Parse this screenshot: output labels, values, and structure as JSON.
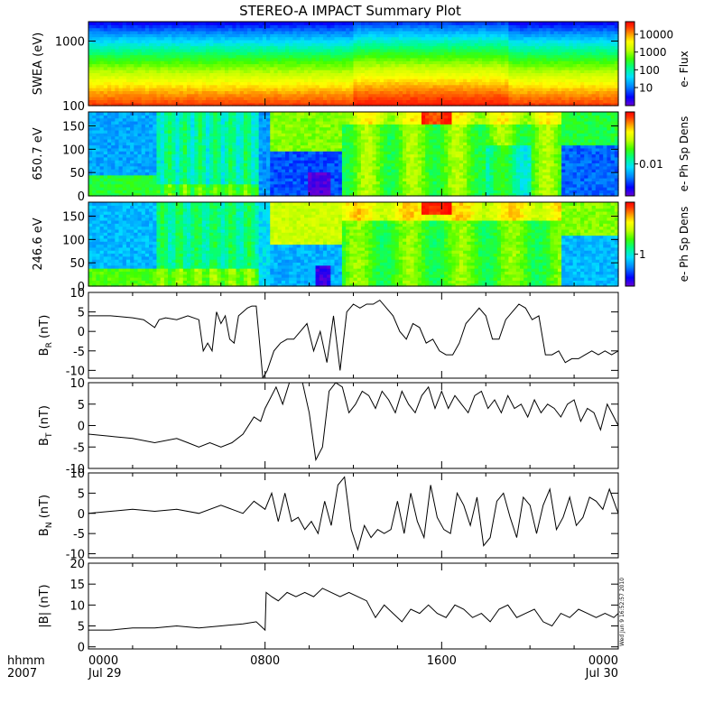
{
  "title": "STEREO-A IMPACT Summary Plot",
  "timestamp": "Wed Jun 9 16:52:57 2010",
  "x_axis": {
    "row1_label": "hhmm",
    "row2_label": "2007",
    "ticks": [
      {
        "hours": 0,
        "time": "0000",
        "date": "Jul 29"
      },
      {
        "hours": 8,
        "time": "0800",
        "date": ""
      },
      {
        "hours": 16,
        "time": "1600",
        "date": ""
      },
      {
        "hours": 24,
        "time": "0000",
        "date": "Jul 30"
      }
    ],
    "range_hours": [
      0,
      24
    ]
  },
  "colors": {
    "trace": "#000000",
    "colormap": [
      "#6a00d4",
      "#0000ff",
      "#0080ff",
      "#00e0ff",
      "#00ff80",
      "#40ff00",
      "#c0ff00",
      "#ffff00",
      "#ff9000",
      "#ff3000",
      "#ff0000"
    ]
  },
  "chart_data": [
    {
      "type": "heatmap",
      "ylabel": "SWEA (eV)",
      "yscale": "log",
      "ylim": [
        100,
        2000
      ],
      "yticks": [
        "100",
        "1000"
      ],
      "colorbar": {
        "label": "e- Flux",
        "scale": "log",
        "ticks": [
          "10",
          "100",
          "1000",
          "10000"
        ]
      }
    },
    {
      "type": "heatmap",
      "ylabel": "650.7 eV",
      "ylim": [
        0,
        180
      ],
      "yticks": [
        "0",
        "50",
        "100",
        "150"
      ],
      "colorbar": {
        "label": "e- Ph Sp Dens",
        "scale": "log",
        "ticks": [
          "0.01"
        ]
      }
    },
    {
      "type": "heatmap",
      "ylabel": "246.6 eV",
      "ylim": [
        0,
        180
      ],
      "yticks": [
        "0",
        "50",
        "100",
        "150"
      ],
      "colorbar": {
        "label": "e- Ph Sp Dens",
        "scale": "log",
        "ticks": [
          "1"
        ]
      }
    },
    {
      "type": "line",
      "ylabel": "B",
      "ylabel_sub": "R",
      "ylabel_unit": " (nT)",
      "ylim": [
        -12,
        10
      ],
      "yticks": [
        "-10",
        "-5",
        "0",
        "5",
        "10"
      ],
      "x": [
        0,
        1,
        2,
        2.5,
        3,
        3.2,
        3.5,
        4,
        4.5,
        5,
        5.2,
        5.4,
        5.6,
        5.8,
        6,
        6.2,
        6.4,
        6.6,
        6.8,
        7,
        7.2,
        7.4,
        7.6,
        7.9,
        8.1,
        8.4,
        8.7,
        9,
        9.3,
        9.6,
        9.9,
        10.2,
        10.5,
        10.8,
        11.1,
        11.4,
        11.7,
        12,
        12.3,
        12.6,
        12.9,
        13.2,
        13.5,
        13.8,
        14.1,
        14.4,
        14.7,
        15,
        15.3,
        15.6,
        15.9,
        16.2,
        16.5,
        16.8,
        17.1,
        17.4,
        17.7,
        18,
        18.3,
        18.6,
        18.9,
        19.2,
        19.5,
        19.8,
        20.1,
        20.4,
        20.7,
        21,
        21.3,
        21.6,
        21.9,
        22.2,
        22.5,
        22.8,
        23.1,
        23.4,
        23.7,
        24
      ],
      "y": [
        4,
        4,
        3.5,
        3,
        1,
        3,
        3.5,
        3,
        4,
        3,
        -5,
        -3,
        -5,
        5,
        2,
        4,
        -2,
        -3,
        4,
        5,
        6,
        6.5,
        6.5,
        -12,
        -10,
        -5,
        -3,
        -2,
        -2,
        0,
        2,
        -5,
        0,
        -8,
        4,
        -10,
        5,
        7,
        6,
        7,
        7,
        8,
        6,
        4,
        0,
        -2,
        2,
        1,
        -3,
        -2,
        -5,
        -6,
        -6,
        -3,
        2,
        4,
        6,
        4,
        -2,
        -2,
        3,
        5,
        7,
        6,
        3,
        4,
        -6,
        -6,
        -5,
        -8,
        -7,
        -7,
        -6,
        -5,
        -6,
        -5,
        -6,
        -5
      ]
    },
    {
      "type": "line",
      "ylabel": "B",
      "ylabel_sub": "T",
      "ylabel_unit": " (nT)",
      "ylim": [
        -10,
        10
      ],
      "yticks": [
        "-10",
        "-5",
        "0",
        "5",
        "10"
      ],
      "x": [
        0,
        1,
        2,
        3,
        4,
        4.5,
        5,
        5.5,
        6,
        6.5,
        7,
        7.5,
        7.8,
        8,
        8.2,
        8.5,
        8.8,
        9.1,
        9.4,
        9.7,
        10,
        10.3,
        10.6,
        10.9,
        11.2,
        11.5,
        11.8,
        12.1,
        12.4,
        12.7,
        13,
        13.3,
        13.6,
        13.9,
        14.2,
        14.5,
        14.8,
        15.1,
        15.4,
        15.7,
        16,
        16.3,
        16.6,
        16.9,
        17.2,
        17.5,
        17.8,
        18.1,
        18.4,
        18.7,
        19,
        19.3,
        19.6,
        19.9,
        20.2,
        20.5,
        20.8,
        21.1,
        21.4,
        21.7,
        22,
        22.3,
        22.6,
        22.9,
        23.2,
        23.5,
        23.8,
        24
      ],
      "y": [
        -2,
        -2.5,
        -3,
        -4,
        -3,
        -4,
        -5,
        -4,
        -5,
        -4,
        -2,
        2,
        1,
        4,
        6,
        9,
        5,
        10,
        11,
        10,
        3,
        -8,
        -5,
        8,
        10,
        9,
        3,
        5,
        8,
        7,
        4,
        8,
        6,
        3,
        8,
        5,
        3,
        7,
        9,
        4,
        8,
        4,
        7,
        5,
        3,
        7,
        8,
        4,
        6,
        3,
        7,
        4,
        5,
        2,
        6,
        3,
        5,
        4,
        2,
        5,
        6,
        1,
        4,
        3,
        -1,
        5,
        2,
        0
      ]
    },
    {
      "type": "line",
      "ylabel": "B",
      "ylabel_sub": "N",
      "ylabel_unit": " (nT)",
      "ylim": [
        -11,
        10
      ],
      "yticks": [
        "-10",
        "-5",
        "0",
        "5",
        "10"
      ],
      "x": [
        0,
        1,
        2,
        3,
        4,
        5,
        6,
        6.5,
        7,
        7.5,
        8,
        8.3,
        8.6,
        8.9,
        9.2,
        9.5,
        9.8,
        10.1,
        10.4,
        10.7,
        11,
        11.3,
        11.6,
        11.9,
        12.2,
        12.5,
        12.8,
        13.1,
        13.4,
        13.7,
        14,
        14.3,
        14.6,
        14.9,
        15.2,
        15.5,
        15.8,
        16.1,
        16.4,
        16.7,
        17,
        17.3,
        17.6,
        17.9,
        18.2,
        18.5,
        18.8,
        19.1,
        19.4,
        19.7,
        20,
        20.3,
        20.6,
        20.9,
        21.2,
        21.5,
        21.8,
        22.1,
        22.4,
        22.7,
        23,
        23.3,
        23.6,
        24
      ],
      "y": [
        0,
        0.5,
        1,
        0.5,
        1,
        0,
        2,
        1,
        0,
        3,
        1,
        5,
        -2,
        5,
        -2,
        -1,
        -4,
        -2,
        -5,
        3,
        -3,
        7,
        9,
        -4,
        -9,
        -3,
        -6,
        -4,
        -5,
        -4,
        3,
        -5,
        5,
        -2,
        -6,
        7,
        -1,
        -4,
        -5,
        5,
        2,
        -3,
        4,
        -8,
        -6,
        3,
        5,
        -1,
        -6,
        4,
        2,
        -5,
        2,
        6,
        -4,
        -1,
        4,
        -3,
        -1,
        4,
        3,
        1,
        6,
        0
      ]
    },
    {
      "type": "line",
      "ylabel": "|B|",
      "ylabel_sub": "",
      "ylabel_unit": " (nT)",
      "ylim": [
        -0.5,
        20
      ],
      "yticks": [
        "0",
        "5",
        "10",
        "15",
        "20"
      ],
      "x": [
        0,
        1,
        2,
        3,
        4,
        5,
        6,
        7,
        7.6,
        8,
        8.05,
        8.3,
        8.6,
        9,
        9.4,
        9.8,
        10.2,
        10.6,
        11,
        11.4,
        11.8,
        12.2,
        12.6,
        13,
        13.4,
        13.8,
        14.2,
        14.6,
        15,
        15.4,
        15.8,
        16.2,
        16.6,
        17,
        17.4,
        17.8,
        18.2,
        18.6,
        19,
        19.4,
        19.8,
        20.2,
        20.6,
        21,
        21.4,
        21.8,
        22.2,
        22.6,
        23,
        23.4,
        23.8,
        24
      ],
      "y": [
        4,
        4,
        4.5,
        4.5,
        5,
        4.5,
        5,
        5.5,
        6,
        4,
        13,
        12,
        11,
        13,
        12,
        13,
        12,
        14,
        13,
        12,
        13,
        12,
        11,
        7,
        10,
        8,
        6,
        9,
        8,
        10,
        8,
        7,
        10,
        9,
        7,
        8,
        6,
        9,
        10,
        7,
        8,
        9,
        6,
        5,
        8,
        7,
        9,
        8,
        7,
        8,
        7,
        8
      ]
    }
  ]
}
